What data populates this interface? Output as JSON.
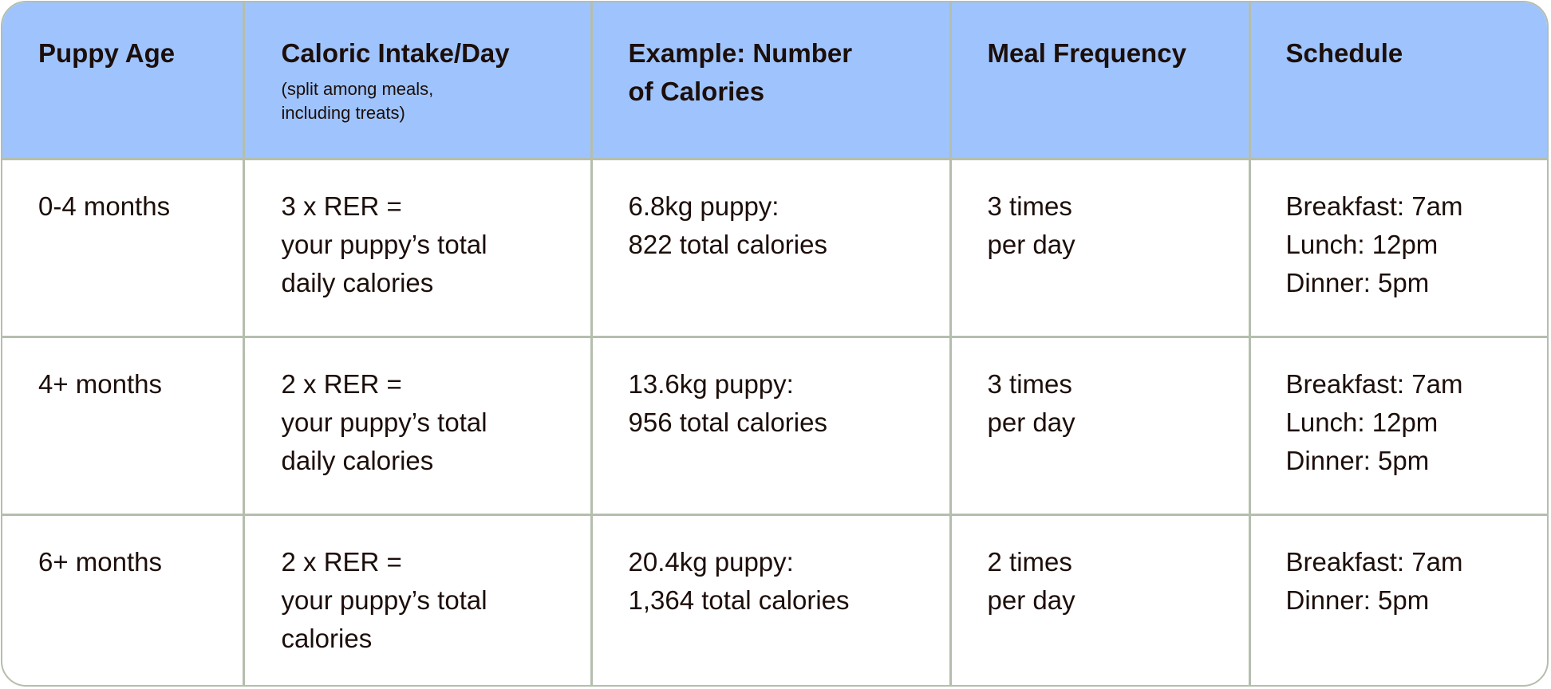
{
  "table": {
    "header_bg": "#9fc4fd",
    "border_color": "#b4bead",
    "text_color": "#1c0e0a",
    "columns": [
      {
        "title": "Puppy Age",
        "title_lines": [
          "Puppy Age"
        ],
        "subtitle_lines": []
      },
      {
        "title": "Caloric Intake/Day",
        "title_lines": [
          "Caloric Intake/Day"
        ],
        "subtitle_lines": [
          "(split among meals,",
          "including treats)"
        ]
      },
      {
        "title": "Example: Number of Calories",
        "title_lines": [
          "Example: Number",
          "of Calories"
        ],
        "subtitle_lines": []
      },
      {
        "title": "Meal Frequency",
        "title_lines": [
          "Meal Frequency"
        ],
        "subtitle_lines": []
      },
      {
        "title": "Schedule",
        "title_lines": [
          "Schedule"
        ],
        "subtitle_lines": []
      }
    ],
    "rows": [
      {
        "age": [
          "0-4 months"
        ],
        "intake": [
          "3 x RER =",
          "your puppy’s total",
          "daily calories"
        ],
        "example": [
          "6.8kg puppy:",
          "822 total calories"
        ],
        "frequency": [
          "3 times",
          "per day"
        ],
        "schedule": [
          "Breakfast: 7am",
          "Lunch: 12pm",
          "Dinner: 5pm"
        ]
      },
      {
        "age": [
          "4+ months"
        ],
        "intake": [
          "2 x RER =",
          "your puppy’s total",
          "daily calories"
        ],
        "example": [
          "13.6kg puppy:",
          "956 total calories"
        ],
        "frequency": [
          "3 times",
          "per day"
        ],
        "schedule": [
          "Breakfast: 7am",
          "Lunch: 12pm",
          "Dinner: 5pm"
        ]
      },
      {
        "age": [
          "6+ months"
        ],
        "intake": [
          "2 x RER =",
          "your puppy’s total",
          "calories"
        ],
        "example": [
          "20.4kg puppy:",
          "1,364 total calories"
        ],
        "frequency": [
          "2 times",
          "per day"
        ],
        "schedule": [
          "Breakfast: 7am",
          "Dinner: 5pm"
        ]
      }
    ]
  }
}
